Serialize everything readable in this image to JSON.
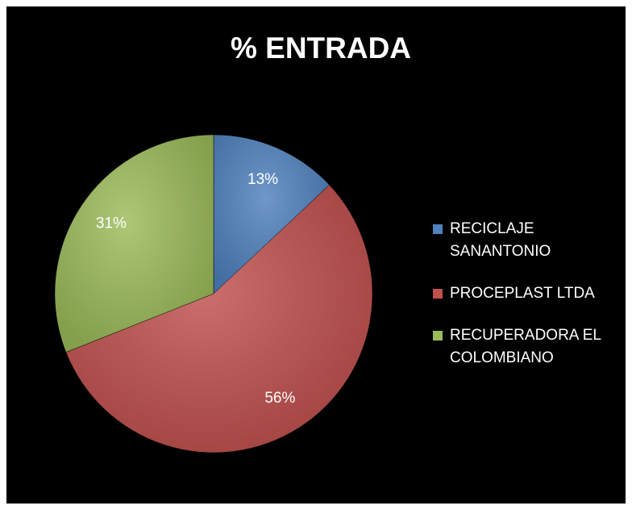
{
  "chart_data": {
    "type": "pie",
    "title": "% ENTRADA",
    "categories": [
      "RECICLAJE SANANTONIO",
      "PROCEPLAST LTDA",
      "RECUPERADORA EL COLOMBIANO"
    ],
    "values": [
      13,
      56,
      31
    ],
    "value_labels": [
      "13%",
      "56%",
      "31%"
    ],
    "colors": [
      "#4f81bd",
      "#c0504d",
      "#9bbb59"
    ],
    "legend": "right"
  }
}
